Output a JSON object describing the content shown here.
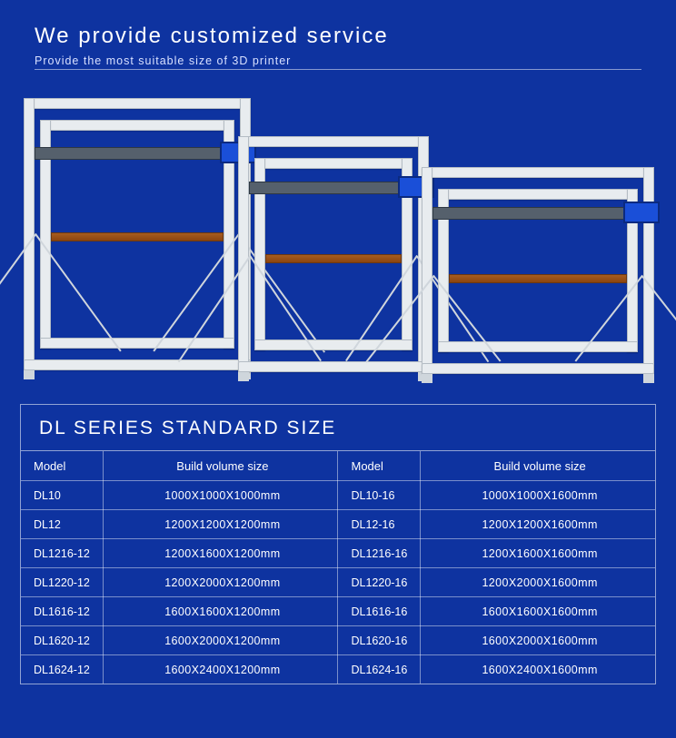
{
  "header": {
    "title": "We provide customized service",
    "subtitle": "Provide the most suitable size of 3D printer"
  },
  "colors": {
    "page_bg": "#0e33a0",
    "frame": "#e8ecef",
    "frame_edge": "#b4bcc4",
    "bed": "#a65c1e",
    "gantry": "#55606c",
    "screen": "#1a4fd8",
    "table_border": "rgba(255,255,255,0.55)",
    "text": "#ffffff"
  },
  "table": {
    "title": "DL SERIES STANDARD SIZE",
    "headers": {
      "model": "Model",
      "size": "Build volume size"
    },
    "rows": [
      {
        "m1": "DL10",
        "s1": "1000X1000X1000mm",
        "m2": "DL10-16",
        "s2": "1000X1000X1600mm"
      },
      {
        "m1": "DL12",
        "s1": "1200X1200X1200mm",
        "m2": "DL12-16",
        "s2": "1200X1200X1600mm"
      },
      {
        "m1": "DL1216-12",
        "s1": "1200X1600X1200mm",
        "m2": "DL1216-16",
        "s2": "1200X1600X1600mm"
      },
      {
        "m1": "DL1220-12",
        "s1": "1200X2000X1200mm",
        "m2": "DL1220-16",
        "s2": "1200X2000X1600mm"
      },
      {
        "m1": "DL1616-12",
        "s1": "1600X1600X1200mm",
        "m2": "DL1616-16",
        "s2": "1600X1600X1600mm"
      },
      {
        "m1": "DL1620-12",
        "s1": "1600X2000X1200mm",
        "m2": "DL1620-16",
        "s2": "1600X2000X1600mm"
      },
      {
        "m1": "DL1624-12",
        "s1": "1600X2400X1200mm",
        "m2": "DL1624-16",
        "s2": "1600X2400X1600mm"
      }
    ]
  }
}
